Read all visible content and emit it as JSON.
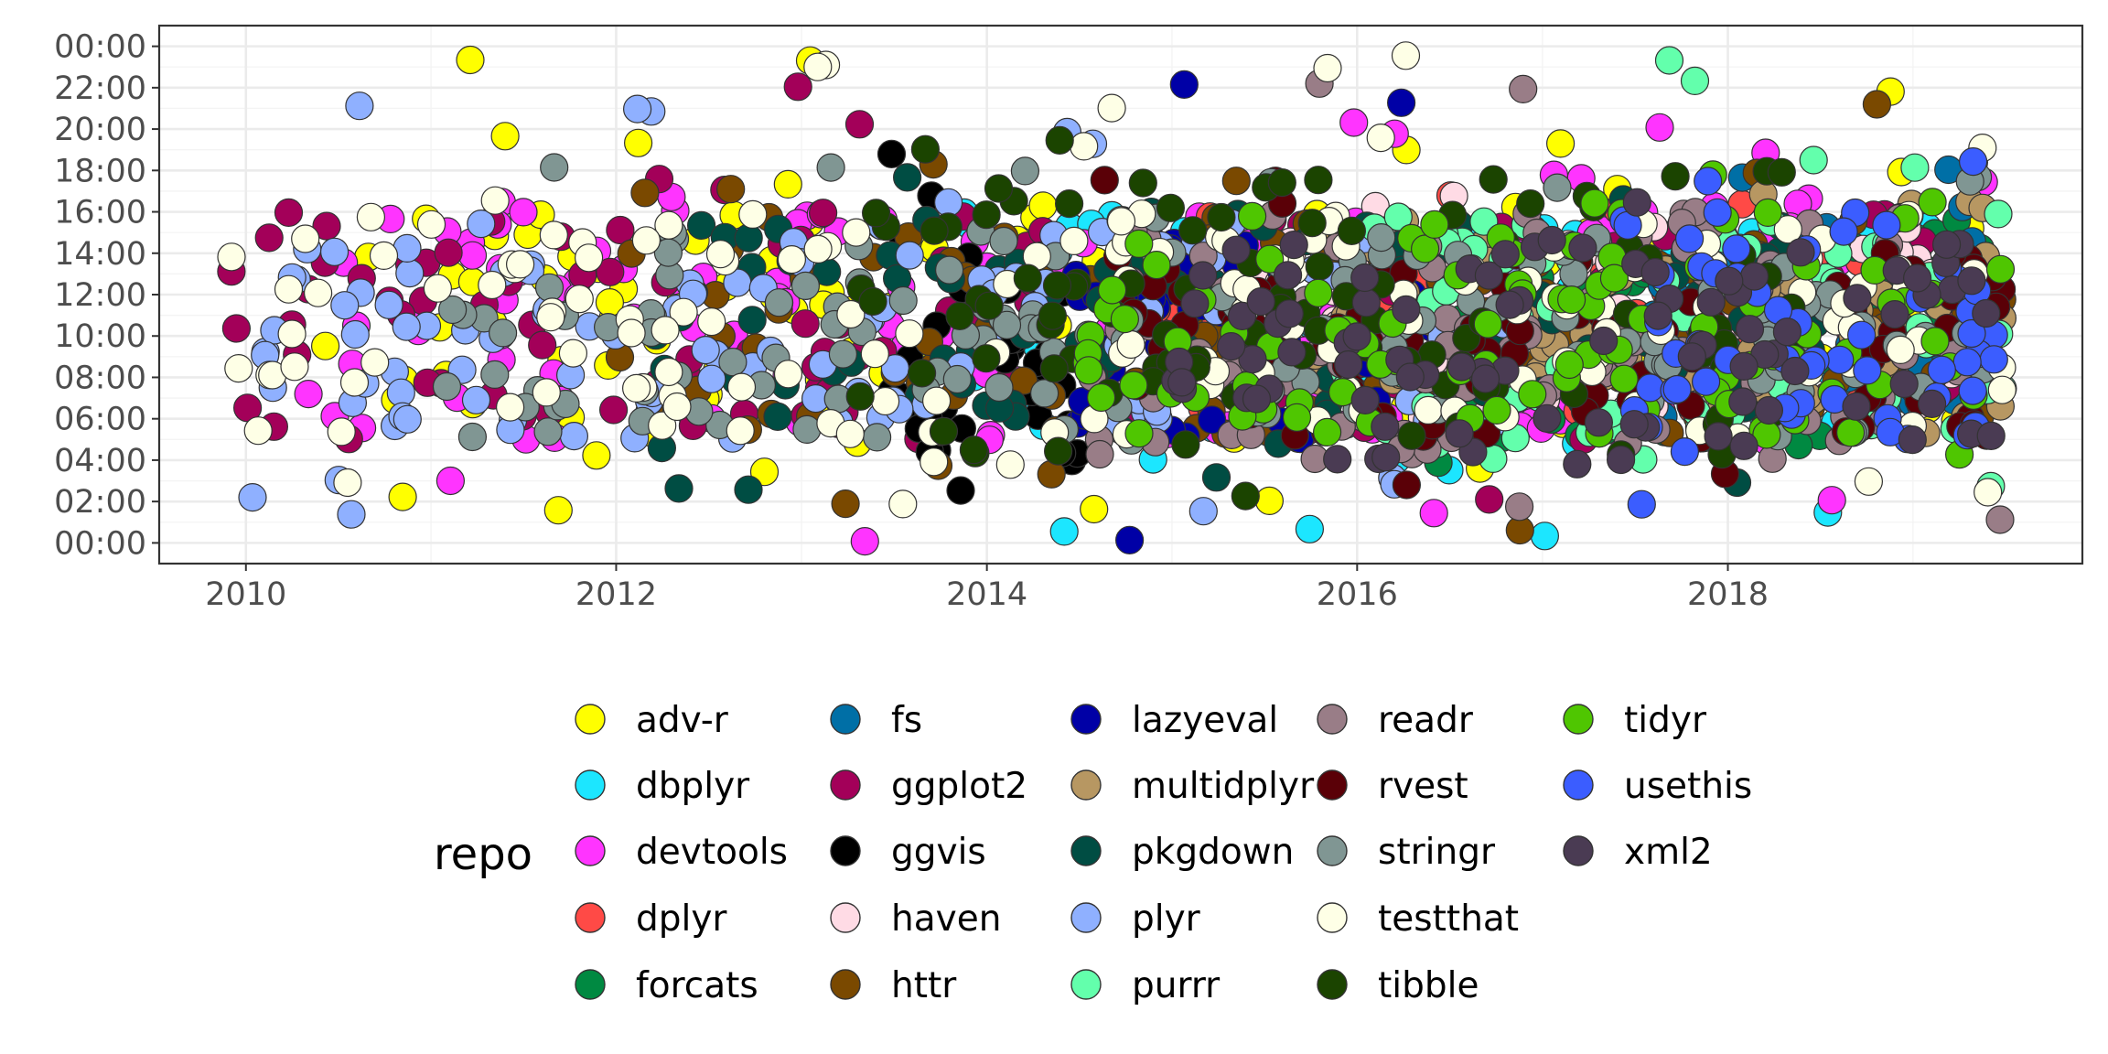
{
  "chart_data": {
    "type": "scatter",
    "title": "",
    "xlabel": "",
    "ylabel": "",
    "x_axis": {
      "kind": "date",
      "range": [
        "2009-07-14",
        "2019-12-01"
      ],
      "ticks": [
        "2010-01-01",
        "2012-01-01",
        "2014-01-01",
        "2016-01-01",
        "2018-01-01"
      ],
      "tick_labels": [
        "2010",
        "2012",
        "2014",
        "2016",
        "2018"
      ]
    },
    "y_axis": {
      "kind": "time_of_day",
      "range": [
        "-01:00",
        "25:00"
      ],
      "tick_labels": [
        "00:00",
        "02:00",
        "04:00",
        "06:00",
        "08:00",
        "10:00",
        "12:00",
        "14:00",
        "16:00",
        "18:00",
        "20:00",
        "22:00",
        "00:00"
      ]
    },
    "grid": true,
    "legend": {
      "title": "repo",
      "position": "bottom"
    },
    "series": [
      {
        "name": "adv-r",
        "color": "#FFFF00",
        "date_range": [
          "2010-06-01",
          "2019-04-30"
        ],
        "hours_range": [
          0.5,
          23.5
        ],
        "core_hours": [
          5.0,
          16.0
        ]
      },
      {
        "name": "dbplyr",
        "color": "#1CE6FF",
        "date_range": [
          "2013-11-01",
          "2019-03-31"
        ],
        "hours_range": [
          0.0,
          17.0
        ],
        "core_hours": [
          5.0,
          16.0
        ]
      },
      {
        "name": "devtools",
        "color": "#FF34FF",
        "date_range": [
          "2010-05-01",
          "2019-06-30"
        ],
        "hours_range": [
          0.0,
          23.5
        ],
        "core_hours": [
          5.0,
          17.0
        ]
      },
      {
        "name": "dplyr",
        "color": "#FF4A46",
        "date_range": [
          "2014-09-01",
          "2019-06-01"
        ],
        "hours_range": [
          5.0,
          17.0
        ],
        "core_hours": [
          6.0,
          14.0
        ]
      },
      {
        "name": "forcats",
        "color": "#008941",
        "date_range": [
          "2016-06-01",
          "2019-06-01"
        ],
        "hours_range": [
          1.0,
          17.0
        ],
        "core_hours": [
          5.0,
          15.0
        ]
      },
      {
        "name": "fs",
        "color": "#006FA6",
        "date_range": [
          "2017-08-01",
          "2019-04-30"
        ],
        "hours_range": [
          5.0,
          21.0
        ],
        "core_hours": [
          6.0,
          16.0
        ]
      },
      {
        "name": "ggplot2",
        "color": "#A30059",
        "date_range": [
          "2009-12-01",
          "2019-06-30"
        ],
        "hours_range": [
          0.0,
          23.0
        ],
        "core_hours": [
          5.0,
          16.0
        ]
      },
      {
        "name": "ggvis",
        "color": "#000000",
        "date_range": [
          "2013-06-01",
          "2014-06-30"
        ],
        "hours_range": [
          1.0,
          22.0
        ],
        "core_hours": [
          4.0,
          17.0
        ]
      },
      {
        "name": "haven",
        "color": "#FFDBE5",
        "date_range": [
          "2015-01-01",
          "2019-06-30"
        ],
        "hours_range": [
          4.0,
          20.0
        ],
        "core_hours": [
          6.0,
          15.0
        ]
      },
      {
        "name": "httr",
        "color": "#7A4900",
        "date_range": [
          "2012-01-01",
          "2019-06-30"
        ],
        "hours_range": [
          0.5,
          23.0
        ],
        "core_hours": [
          5.0,
          16.0
        ]
      },
      {
        "name": "lazyeval",
        "color": "#0000A6",
        "date_range": [
          "2014-06-15",
          "2016-06-30"
        ],
        "hours_range": [
          0.0,
          24.0
        ],
        "core_hours": [
          5.0,
          15.0
        ]
      },
      {
        "name": "multidplyr",
        "color": "#B79762",
        "date_range": [
          "2015-10-01",
          "2019-06-30"
        ],
        "hours_range": [
          5.0,
          20.0
        ],
        "core_hours": [
          6.0,
          15.0
        ]
      },
      {
        "name": "pkgdown",
        "color": "#004D43",
        "date_range": [
          "2012-02-01",
          "2018-06-30"
        ],
        "hours_range": [
          2.0,
          21.5
        ],
        "core_hours": [
          6.0,
          16.0
        ]
      },
      {
        "name": "plyr",
        "color": "#8FB0FF",
        "date_range": [
          "2010-01-01",
          "2016-12-31"
        ],
        "hours_range": [
          1.0,
          22.5
        ],
        "core_hours": [
          5.0,
          16.0
        ]
      },
      {
        "name": "purrr",
        "color": "#63FFAC",
        "date_range": [
          "2015-11-01",
          "2019-06-30"
        ],
        "hours_range": [
          2.0,
          23.5
        ],
        "core_hours": [
          5.0,
          16.0
        ]
      },
      {
        "name": "readr",
        "color": "#997D87",
        "date_range": [
          "2014-06-01",
          "2019-06-30"
        ],
        "hours_range": [
          0.0,
          24.0
        ],
        "core_hours": [
          4.0,
          16.0
        ]
      },
      {
        "name": "rvest",
        "color": "#5A0007",
        "date_range": [
          "2014-08-01",
          "2019-06-30"
        ],
        "hours_range": [
          2.0,
          19.5
        ],
        "core_hours": [
          5.0,
          14.0
        ]
      },
      {
        "name": "stringr",
        "color": "#809693",
        "date_range": [
          "2011-02-01",
          "2019-06-30"
        ],
        "hours_range": [
          4.0,
          18.5
        ],
        "core_hours": [
          5.0,
          15.0
        ]
      },
      {
        "name": "testthat",
        "color": "#FEFFE6",
        "date_range": [
          "2009-12-01",
          "2019-06-30"
        ],
        "hours_range": [
          0.0,
          24.0
        ],
        "core_hours": [
          5.0,
          16.0
        ]
      },
      {
        "name": "tibble",
        "color": "#1B4400",
        "date_range": [
          "2013-04-01",
          "2018-06-30"
        ],
        "hours_range": [
          0.5,
          20.0
        ],
        "core_hours": [
          4.0,
          18.0
        ]
      },
      {
        "name": "tidyr",
        "color": "#4FC601",
        "date_range": [
          "2014-07-01",
          "2019-06-30"
        ],
        "hours_range": [
          4.0,
          18.0
        ],
        "core_hours": [
          5.0,
          16.0
        ]
      },
      {
        "name": "usethis",
        "color": "#3B5DFF",
        "date_range": [
          "2017-06-01",
          "2019-06-30"
        ],
        "hours_range": [
          1.0,
          19.0
        ],
        "core_hours": [
          5.0,
          16.0
        ]
      },
      {
        "name": "xml2",
        "color": "#4A3B53",
        "date_range": [
          "2014-12-01",
          "2019-06-30"
        ],
        "hours_range": [
          3.0,
          17.0
        ],
        "core_hours": [
          4.0,
          15.0
        ]
      }
    ]
  }
}
